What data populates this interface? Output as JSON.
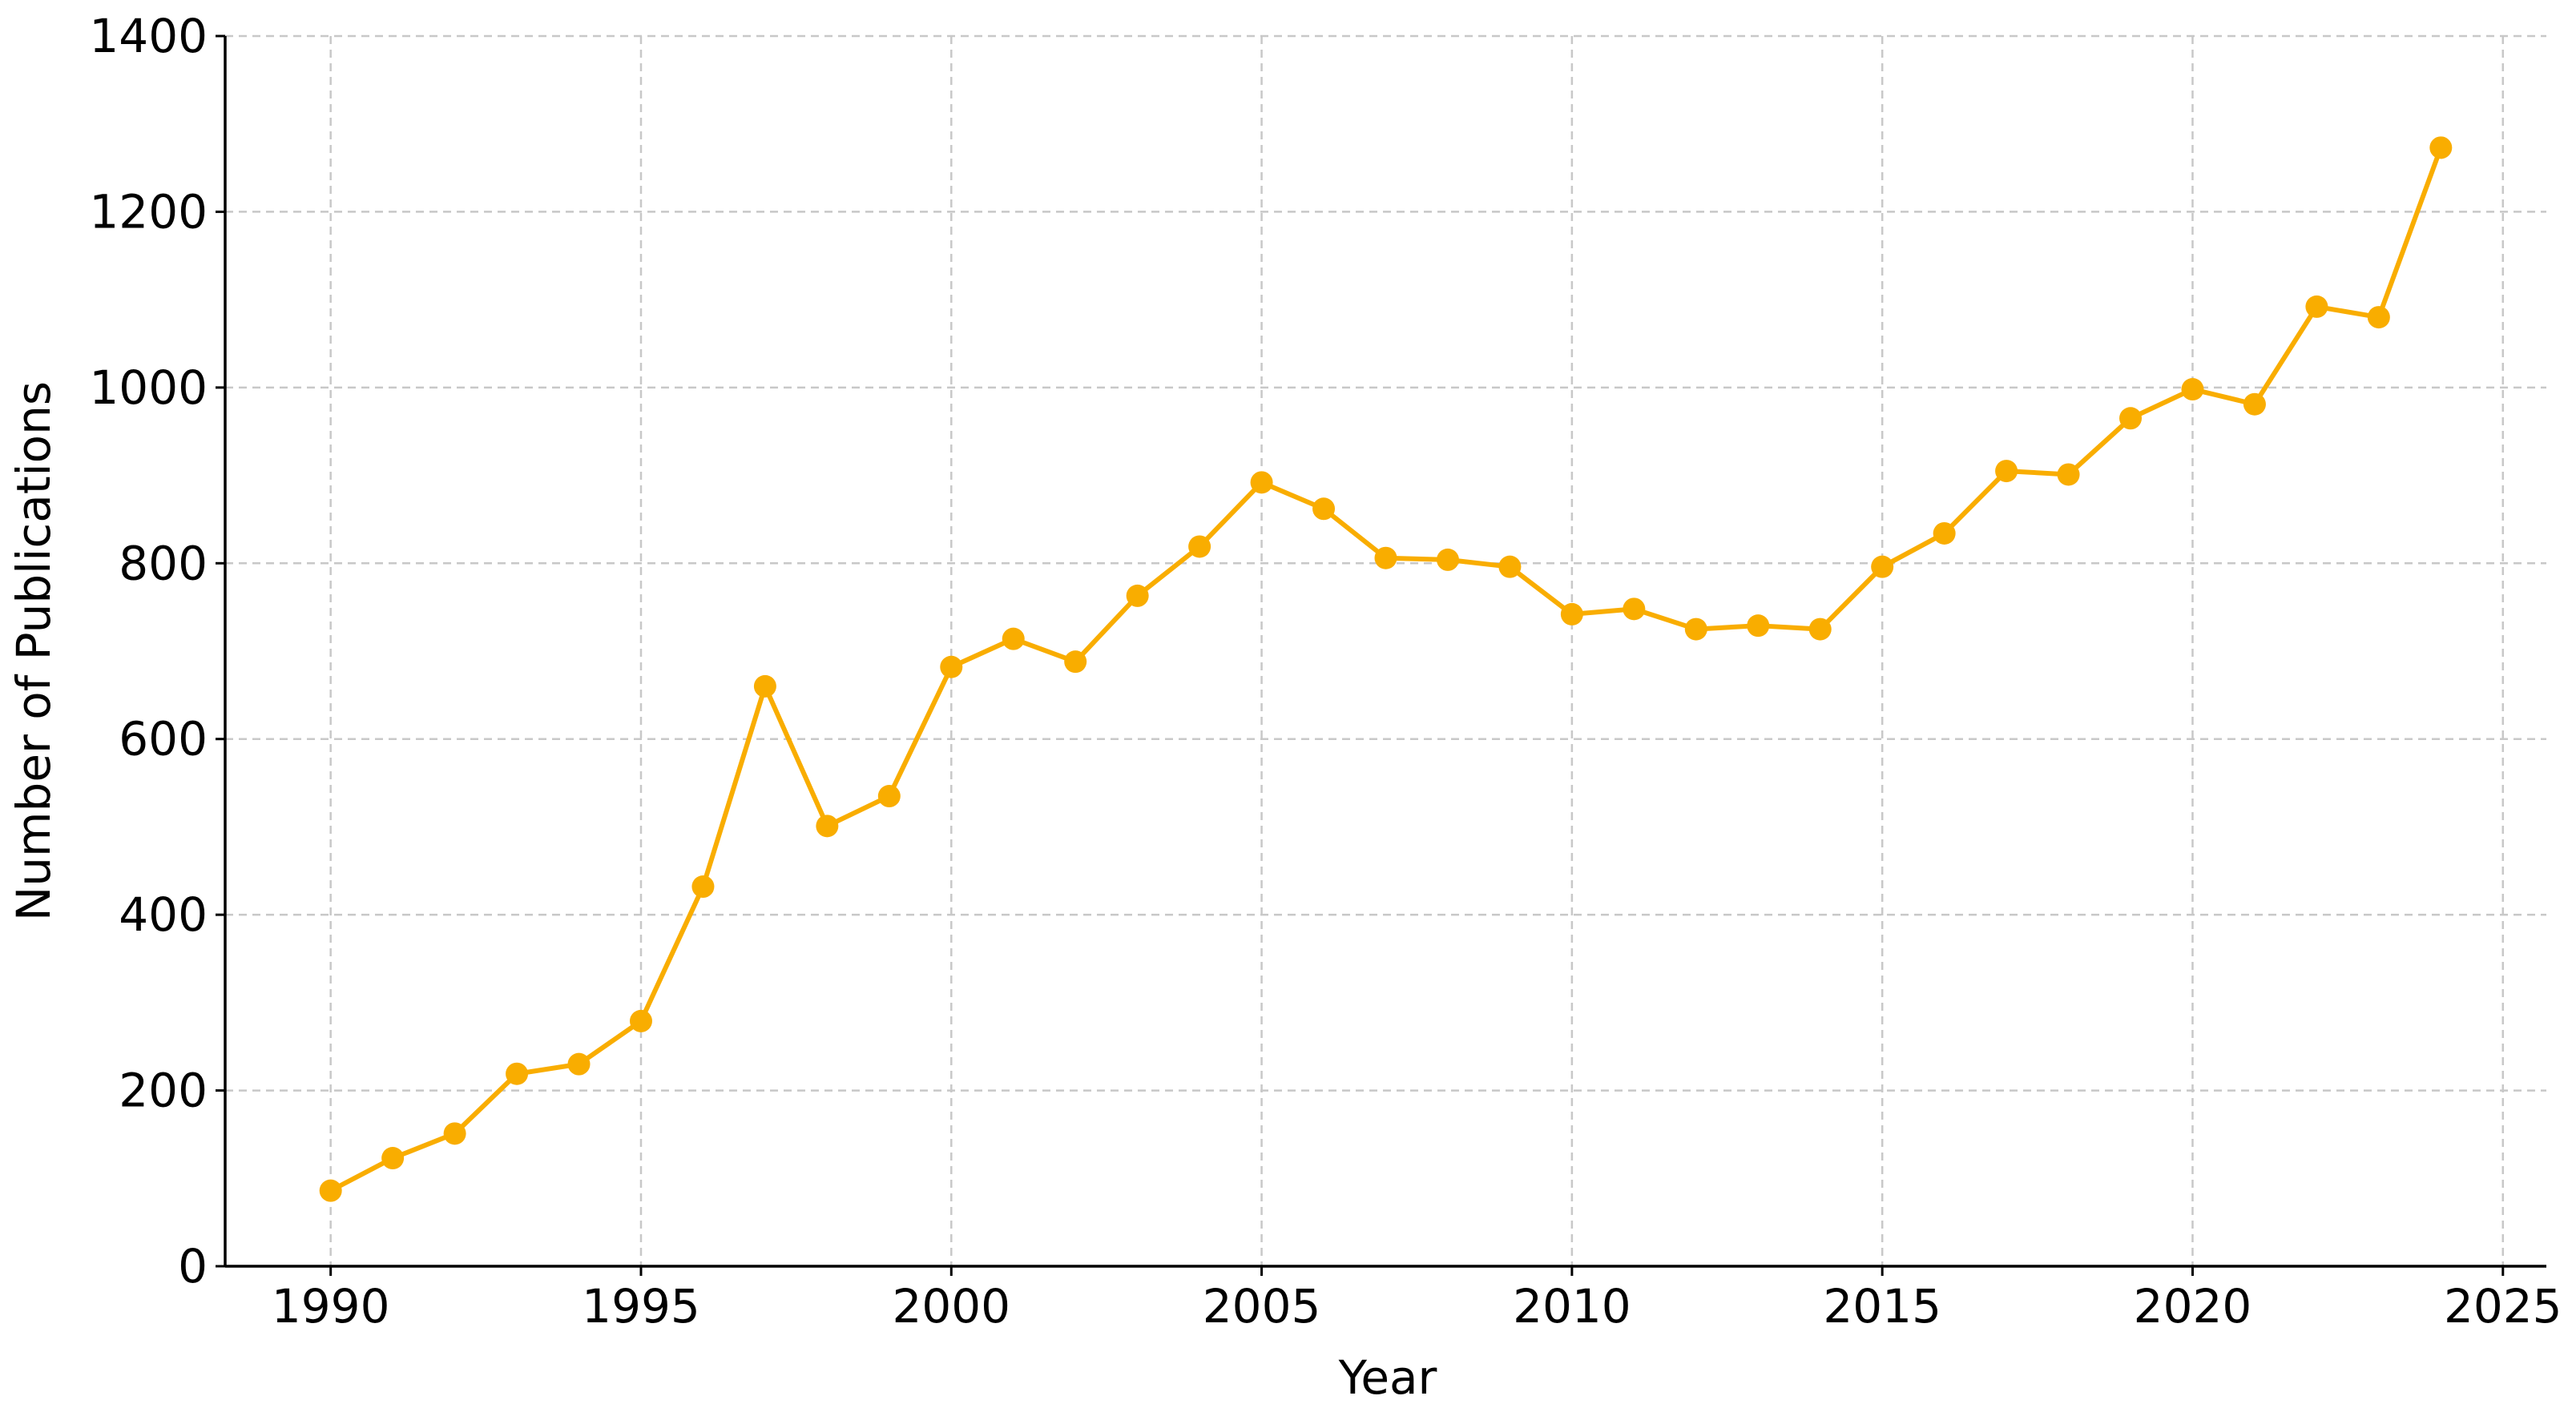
{
  "chart_data": {
    "type": "line",
    "x_label": "Year",
    "y_label": "Number of Publications",
    "x": [
      1990,
      1991,
      1992,
      1993,
      1994,
      1995,
      1996,
      1997,
      1998,
      1999,
      2000,
      2001,
      2002,
      2003,
      2004,
      2005,
      2006,
      2007,
      2008,
      2009,
      2010,
      2011,
      2012,
      2013,
      2014,
      2015,
      2016,
      2017,
      2018,
      2019,
      2020,
      2021,
      2022,
      2023,
      2024
    ],
    "series": [
      {
        "color": "#f9ad00",
        "values": [
          86,
          123,
          151,
          219,
          230,
          279,
          432,
          660,
          501,
          535,
          682,
          714,
          688,
          763,
          819,
          892,
          862,
          806,
          804,
          796,
          742,
          748,
          725,
          729,
          725,
          796,
          834,
          905,
          901,
          965,
          998,
          981,
          1092,
          1080,
          1273
        ]
      }
    ],
    "xlim": [
      1988.3,
      2025.7
    ],
    "xticks": [
      1990,
      1995,
      2000,
      2005,
      2010,
      2015,
      2020,
      2025
    ],
    "ylim": [
      0,
      1400
    ],
    "yticks": [
      0,
      200,
      400,
      600,
      800,
      1000,
      1200,
      1400
    ],
    "grid": true
  }
}
